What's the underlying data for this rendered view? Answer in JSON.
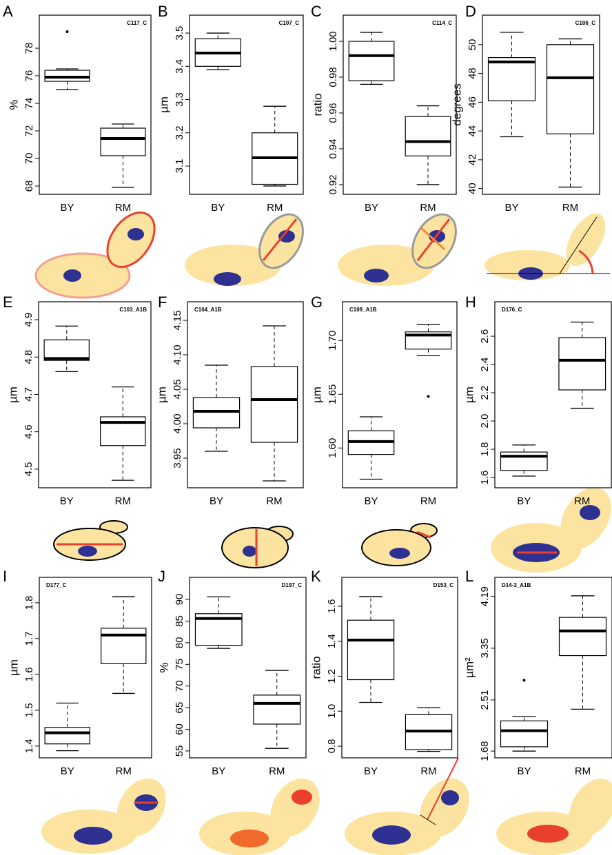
{
  "chart_data": [
    {
      "type": "box",
      "panel": "A",
      "code": "C117_C",
      "ylabel": "%",
      "categories": [
        "BY",
        "RM"
      ],
      "ylim": [
        67.4,
        80.4
      ],
      "yticks": [
        68,
        70,
        72,
        74,
        76,
        78
      ],
      "boxes": [
        {
          "min": 75.0,
          "q1": 75.6,
          "median": 75.9,
          "q3": 76.4,
          "max": 76.5,
          "outliers": [
            79.2
          ]
        },
        {
          "min": 67.9,
          "q1": 70.2,
          "median": 71.45,
          "q3": 72.2,
          "max": 72.5
        }
      ]
    },
    {
      "type": "box",
      "panel": "B",
      "code": "C107_C",
      "ylabel": "µm",
      "categories": [
        "BY",
        "RM"
      ],
      "ylim": [
        3.015,
        3.554
      ],
      "yticks": [
        3.1,
        3.2,
        3.3,
        3.4,
        3.5
      ],
      "boxes": [
        {
          "min": 3.39,
          "q1": 3.4,
          "median": 3.44,
          "q3": 3.483,
          "max": 3.5
        },
        {
          "min": 3.04,
          "q1": 3.045,
          "median": 3.125,
          "q3": 3.2,
          "max": 3.28
        }
      ]
    },
    {
      "type": "box",
      "panel": "C",
      "code": "C114_C",
      "ylabel": "ratio",
      "categories": [
        "BY",
        "RM"
      ],
      "ylim": [
        0.9146,
        1.0146
      ],
      "yticks": [
        0.92,
        0.94,
        0.96,
        0.98,
        {
          "value": 1,
          "label": "1.00"
        }
      ],
      "boxes": [
        {
          "min": 0.976,
          "q1": 0.978,
          "median": 0.992,
          "q3": 1.0,
          "max": 1.005
        },
        {
          "min": 0.92,
          "q1": 0.936,
          "median": 0.944,
          "q3": 0.958,
          "max": 0.964
        }
      ]
    },
    {
      "type": "box",
      "panel": "D",
      "code": "C106_C",
      "ylabel": "degrees",
      "categories": [
        "BY",
        "RM"
      ],
      "ylim": [
        39.6,
        52.05
      ],
      "yticks": [
        40,
        42,
        44,
        46,
        48,
        50
      ],
      "boxes": [
        {
          "min": 43.6,
          "q1": 46.1,
          "median": 48.8,
          "q3": 49.1,
          "max": 50.86
        },
        {
          "min": 40.1,
          "q1": 43.8,
          "median": 47.7,
          "q3": 50.0,
          "max": 50.4
        }
      ]
    },
    {
      "type": "box",
      "panel": "E",
      "code": "C103_A1B",
      "ylabel": "µm",
      "categories": [
        "BY",
        "RM"
      ],
      "ylim": [
        4.45,
        4.948
      ],
      "yticks": [
        4.5,
        4.6,
        4.7,
        4.8,
        4.9
      ],
      "boxes": [
        {
          "min": 4.761,
          "q1": 4.791,
          "median": 4.796,
          "q3": 4.846,
          "max": 4.883
        },
        {
          "min": 4.47,
          "q1": 4.563,
          "median": 4.625,
          "q3": 4.64,
          "max": 4.72
        }
      ]
    },
    {
      "type": "box",
      "panel": "F",
      "code": "C104_A1B",
      "ylabel": "µm",
      "categories": [
        "BY",
        "RM"
      ],
      "ylim": [
        3.907,
        4.177
      ],
      "yticks": [
        3.95,
        {
          "value": 4,
          "label": "4.00"
        },
        4.05,
        {
          "value": 4.1,
          "label": "4.10"
        },
        4.15
      ],
      "boxes": [
        {
          "min": 3.96,
          "q1": 3.994,
          "median": 4.018,
          "q3": 4.038,
          "max": 4.085
        },
        {
          "min": 3.917,
          "q1": 3.973,
          "median": 4.035,
          "q3": 4.083,
          "max": 4.142
        }
      ]
    },
    {
      "type": "box",
      "panel": "G",
      "code": "C109_A1B",
      "ylabel": "µm",
      "categories": [
        "BY",
        "RM"
      ],
      "ylim": [
        1.563,
        1.736
      ],
      "yticks": [
        {
          "value": 1.6,
          "label": "1.60"
        },
        1.65,
        {
          "value": 1.7,
          "label": "1.70"
        }
      ],
      "boxes": [
        {
          "min": 1.571,
          "q1": 1.594,
          "median": 1.606,
          "q3": 1.616,
          "max": 1.629
        },
        {
          "min": 1.686,
          "q1": 1.692,
          "median": 1.705,
          "q3": 1.708,
          "max": 1.715,
          "outliers": [
            1.648
          ]
        }
      ]
    },
    {
      "type": "box",
      "panel": "H",
      "code": "D176_C",
      "ylabel": "µm",
      "categories": [
        "BY",
        "RM"
      ],
      "ylim": [
        1.527,
        2.844
      ],
      "yticks": [
        1.6,
        1.8,
        {
          "value": 2,
          "label": "2.0"
        },
        2.2,
        2.4,
        2.6
      ],
      "boxes": [
        {
          "min": 1.61,
          "q1": 1.65,
          "median": 1.75,
          "q3": 1.78,
          "max": 1.83
        },
        {
          "min": 2.09,
          "q1": 2.22,
          "median": 2.43,
          "q3": 2.59,
          "max": 2.7
        }
      ]
    },
    {
      "type": "box",
      "panel": "I",
      "code": "D177_C",
      "ylabel": "µm",
      "categories": [
        "BY",
        "RM"
      ],
      "ylim": [
        1.367,
        1.871
      ],
      "yticks": [
        1.4,
        1.5,
        1.6,
        1.7,
        1.8
      ],
      "boxes": [
        {
          "min": 1.387,
          "q1": 1.406,
          "median": 1.437,
          "q3": 1.452,
          "max": 1.52
        },
        {
          "min": 1.547,
          "q1": 1.63,
          "median": 1.71,
          "q3": 1.729,
          "max": 1.817
        }
      ]
    },
    {
      "type": "box",
      "panel": "J",
      "code": "D197_C",
      "ylabel": "%",
      "categories": [
        "BY",
        "RM"
      ],
      "ylim": [
        53.4,
        95.1
      ],
      "yticks": [
        55,
        60,
        65,
        70,
        75,
        80,
        85,
        90
      ],
      "boxes": [
        {
          "min": 78.7,
          "q1": 79.4,
          "median": 85.6,
          "q3": 86.7,
          "max": 90.6
        },
        {
          "min": 55.6,
          "q1": 61.2,
          "median": 66.0,
          "q3": 67.9,
          "max": 73.6
        }
      ]
    },
    {
      "type": "box",
      "panel": "K",
      "code": "D153_C",
      "ylabel": "ratio",
      "categories": [
        "BY",
        "RM"
      ],
      "ylim": [
        0.733,
        1.765
      ],
      "yticks": [
        0.8,
        {
          "value": 1,
          "label": "1.0"
        },
        1.2,
        1.4,
        1.6
      ],
      "boxes": [
        {
          "min": 1.05,
          "q1": 1.18,
          "median": 1.406,
          "q3": 1.52,
          "max": 1.655
        },
        {
          "min": 0.77,
          "q1": 0.78,
          "median": 0.886,
          "q3": 0.98,
          "max": 1.02
        }
      ]
    },
    {
      "type": "box",
      "panel": "L",
      "code": "D14-3_A1B",
      "ylabel": "µm²",
      "categories": [
        "BY",
        "RM"
      ],
      "ylim": [
        1.57,
        4.5
      ],
      "yticks": [
        1.68,
        2.51,
        3.35,
        4.19
      ],
      "boxes": [
        {
          "min": 1.68,
          "q1": 1.75,
          "median": 2.01,
          "q3": 2.17,
          "max": 2.24,
          "outliers": [
            2.83
          ]
        },
        {
          "min": 2.36,
          "q1": 3.23,
          "median": 3.63,
          "q3": 3.85,
          "max": 4.2
        }
      ]
    }
  ]
}
